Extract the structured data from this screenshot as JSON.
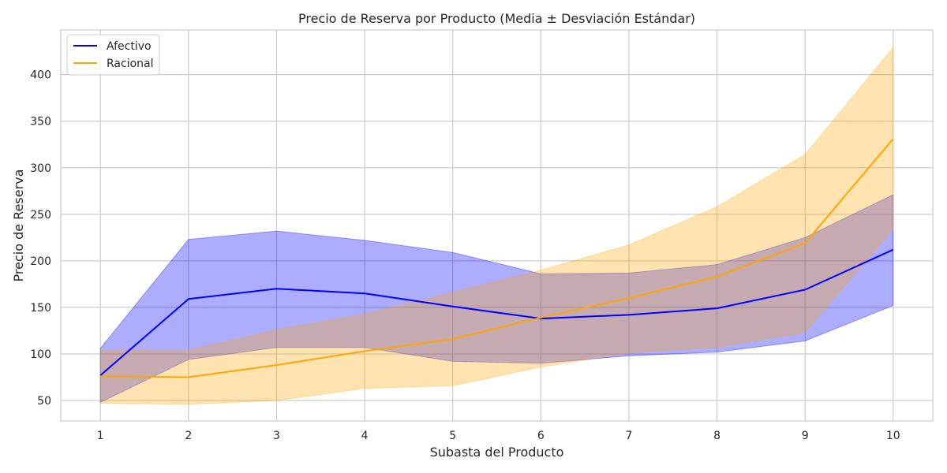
{
  "chart_data": {
    "type": "line",
    "title": "Precio de Reserva por Producto (Media ± Desviación Estándar)",
    "xlabel": "Subasta del Producto",
    "ylabel": "Precio de Reserva",
    "x": [
      1,
      2,
      3,
      4,
      5,
      6,
      7,
      8,
      9,
      10
    ],
    "xlim": [
      0.55,
      10.45
    ],
    "ylim": [
      28,
      448
    ],
    "yticks": [
      50,
      100,
      150,
      200,
      250,
      300,
      350,
      400
    ],
    "grid": true,
    "legend_position": "top-left",
    "series": [
      {
        "name": "Afectivo",
        "color": "#0000ff",
        "band_color": "#0000ff",
        "mean": [
          77,
          159,
          170,
          165,
          151,
          138,
          142,
          149,
          169,
          212
        ],
        "upper": [
          106,
          223,
          232,
          222,
          209,
          186,
          187,
          196,
          225,
          271
        ],
        "lower": [
          48,
          94,
          107,
          107,
          92,
          90,
          98,
          102,
          114,
          152
        ]
      },
      {
        "name": "Racional",
        "color": "#ffa500",
        "band_color": "#ffa500",
        "mean": [
          76,
          75,
          88,
          103,
          116,
          139,
          160,
          183,
          219,
          331
        ],
        "upper": [
          104,
          104,
          126,
          143,
          166,
          190,
          217,
          258,
          314,
          429
        ],
        "lower": [
          47,
          46,
          50,
          63,
          66,
          86,
          101,
          107,
          123,
          234
        ]
      }
    ]
  }
}
